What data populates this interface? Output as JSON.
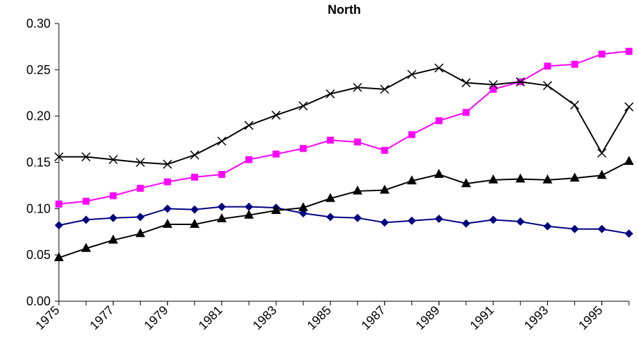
{
  "chart_data": {
    "type": "line",
    "title": "North",
    "x": [
      1975,
      1976,
      1977,
      1978,
      1979,
      1980,
      1981,
      1982,
      1983,
      1984,
      1985,
      1986,
      1987,
      1988,
      1989,
      1990,
      1991,
      1992,
      1993,
      1994,
      1995,
      1996
    ],
    "xlim": [
      1975,
      1996
    ],
    "xticks": [
      1975,
      1977,
      1979,
      1981,
      1983,
      1985,
      1987,
      1989,
      1991,
      1993,
      1995
    ],
    "ylim": [
      0,
      0.3
    ],
    "yticks": [
      {
        "value": 0,
        "label": "0.00"
      },
      {
        "value": 0.05,
        "label": "0.05"
      },
      {
        "value": 0.1,
        "label": "0.10"
      },
      {
        "value": 0.15,
        "label": "0.15"
      },
      {
        "value": 0.2,
        "label": "0.20"
      },
      {
        "value": 0.25,
        "label": "0.25"
      },
      {
        "value": 0.3,
        "label": "0.30"
      }
    ],
    "grid": false,
    "series": [
      {
        "color": "#ff00ff",
        "marker": "square",
        "values": [
          0.105,
          0.108,
          0.114,
          0.122,
          0.129,
          0.134,
          0.137,
          0.153,
          0.159,
          0.165,
          0.174,
          0.172,
          0.163,
          0.18,
          0.195,
          0.204,
          0.229,
          0.237,
          0.254,
          0.256,
          0.267,
          0.27
        ]
      },
      {
        "color": "#000000",
        "marker": "x",
        "values": [
          0.156,
          0.156,
          0.153,
          0.15,
          0.148,
          0.158,
          0.173,
          0.19,
          0.201,
          0.211,
          0.224,
          0.231,
          0.229,
          0.245,
          0.252,
          0.236,
          0.234,
          0.237,
          0.233,
          0.212,
          0.16,
          0.21
        ]
      },
      {
        "color": "#000080",
        "marker": "diamond",
        "values": [
          0.082,
          0.088,
          0.09,
          0.091,
          0.1,
          0.099,
          0.102,
          0.102,
          0.101,
          0.095,
          0.091,
          0.09,
          0.085,
          0.087,
          0.089,
          0.084,
          0.088,
          0.086,
          0.081,
          0.078,
          0.078,
          0.073
        ]
      },
      {
        "color": "#000000",
        "marker": "triangle",
        "values": [
          0.047,
          0.057,
          0.066,
          0.073,
          0.083,
          0.083,
          0.089,
          0.093,
          0.098,
          0.101,
          0.111,
          0.119,
          0.12,
          0.13,
          0.137,
          0.127,
          0.131,
          0.132,
          0.131,
          0.133,
          0.136,
          0.151
        ]
      }
    ]
  }
}
